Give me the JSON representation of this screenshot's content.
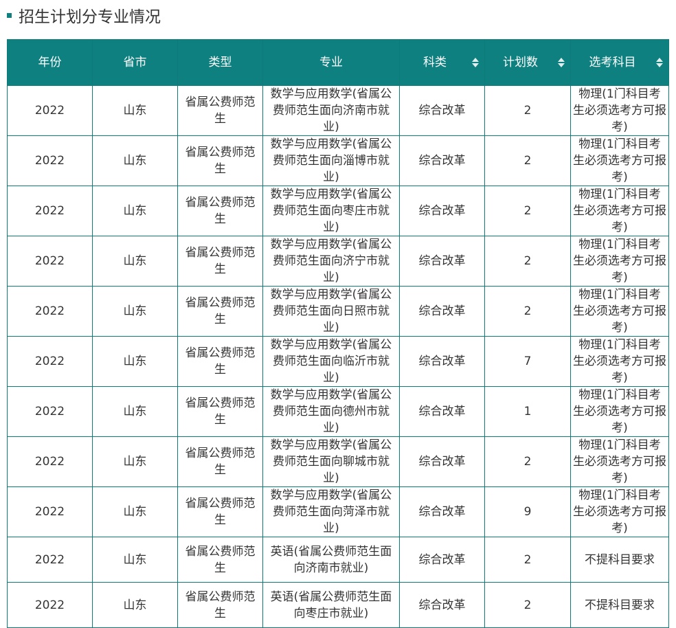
{
  "title": "招生计划分专业情况",
  "colors": {
    "accent": "#0e8080"
  },
  "columns": [
    {
      "label": "年份",
      "sortable": false
    },
    {
      "label": "省市",
      "sortable": false
    },
    {
      "label": "类型",
      "sortable": false
    },
    {
      "label": "专业",
      "sortable": false
    },
    {
      "label": "科类",
      "sortable": true
    },
    {
      "label": "计划数",
      "sortable": true
    },
    {
      "label": "选考科目",
      "sortable": true
    }
  ],
  "rows": [
    [
      "2022",
      "山东",
      "省属公费师范生",
      "数学与应用数学(省属公费师范生面向济南市就业)",
      "综合改革",
      "2",
      "物理(1门科目考生必须选考方可报考)"
    ],
    [
      "2022",
      "山东",
      "省属公费师范生",
      "数学与应用数学(省属公费师范生面向淄博市就业)",
      "综合改革",
      "2",
      "物理(1门科目考生必须选考方可报考)"
    ],
    [
      "2022",
      "山东",
      "省属公费师范生",
      "数学与应用数学(省属公费师范生面向枣庄市就业)",
      "综合改革",
      "2",
      "物理(1门科目考生必须选考方可报考)"
    ],
    [
      "2022",
      "山东",
      "省属公费师范生",
      "数学与应用数学(省属公费师范生面向济宁市就业)",
      "综合改革",
      "2",
      "物理(1门科目考生必须选考方可报考)"
    ],
    [
      "2022",
      "山东",
      "省属公费师范生",
      "数学与应用数学(省属公费师范生面向日照市就业)",
      "综合改革",
      "2",
      "物理(1门科目考生必须选考方可报考)"
    ],
    [
      "2022",
      "山东",
      "省属公费师范生",
      "数学与应用数学(省属公费师范生面向临沂市就业)",
      "综合改革",
      "7",
      "物理(1门科目考生必须选考方可报考)"
    ],
    [
      "2022",
      "山东",
      "省属公费师范生",
      "数学与应用数学(省属公费师范生面向德州市就业)",
      "综合改革",
      "1",
      "物理(1门科目考生必须选考方可报考)"
    ],
    [
      "2022",
      "山东",
      "省属公费师范生",
      "数学与应用数学(省属公费师范生面向聊城市就业)",
      "综合改革",
      "2",
      "物理(1门科目考生必须选考方可报考)"
    ],
    [
      "2022",
      "山东",
      "省属公费师范生",
      "数学与应用数学(省属公费师范生面向菏泽市就业)",
      "综合改革",
      "9",
      "物理(1门科目考生必须选考方可报考)"
    ],
    [
      "2022",
      "山东",
      "省属公费师范生",
      "英语(省属公费师范生面向济南市就业)",
      "综合改革",
      "2",
      "不提科目要求"
    ],
    [
      "2022",
      "山东",
      "省属公费师范生",
      "英语(省属公费师范生面向枣庄市就业)",
      "综合改革",
      "2",
      "不提科目要求"
    ]
  ]
}
